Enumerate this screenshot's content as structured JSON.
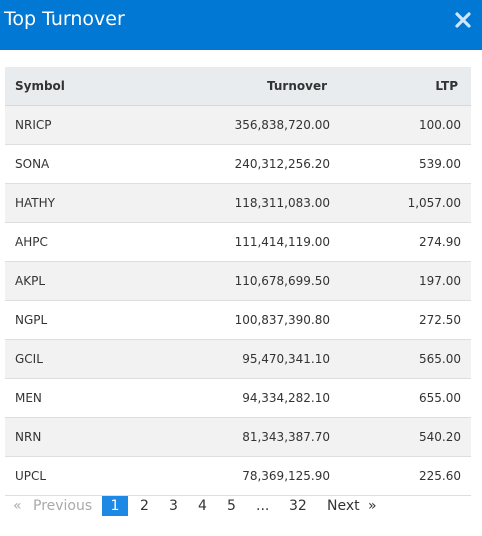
{
  "header": {
    "title": "Top Turnover"
  },
  "table": {
    "columns": [
      "Symbol",
      "Turnover",
      "LTP"
    ],
    "rows": [
      [
        "NRICP",
        "356,838,720.00",
        "100.00"
      ],
      [
        "SONA",
        "240,312,256.20",
        "539.00"
      ],
      [
        "HATHY",
        "118,311,083.00",
        "1,057.00"
      ],
      [
        "AHPC",
        "111,414,119.00",
        "274.90"
      ],
      [
        "AKPL",
        "110,678,699.50",
        "197.00"
      ],
      [
        "NGPL",
        "100,837,390.80",
        "272.50"
      ],
      [
        "GCIL",
        "95,470,341.10",
        "565.00"
      ],
      [
        "MEN",
        "94,334,282.10",
        "655.00"
      ],
      [
        "NRN",
        "81,343,387.70",
        "540.20"
      ],
      [
        "UPCL",
        "78,369,125.90",
        "225.60"
      ]
    ]
  },
  "pagination": {
    "first": "«",
    "previous": "Previous",
    "pages": [
      "1",
      "2",
      "3",
      "4",
      "5"
    ],
    "ellipsis": "...",
    "last_page": "32",
    "next": "Next",
    "end": "»",
    "active": "1"
  },
  "colors": {
    "header_bg": "#0078d4",
    "active_page": "#1e88e5"
  }
}
